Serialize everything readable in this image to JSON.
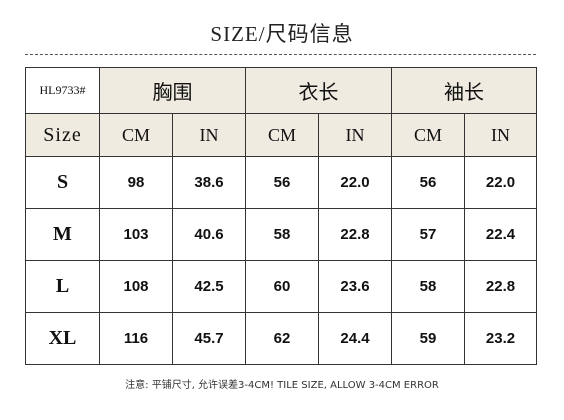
{
  "header": {
    "title": "SIZE/尺码信息"
  },
  "table": {
    "brand": "HL9733#",
    "groups": [
      "胸围",
      "衣长",
      "袖长"
    ],
    "subheaders": [
      "Size",
      "CM",
      "IN",
      "CM",
      "IN",
      "CM",
      "IN"
    ],
    "rows": [
      [
        "S",
        "98",
        "38.6",
        "56",
        "22.0",
        "56",
        "22.0"
      ],
      [
        "M",
        "103",
        "40.6",
        "58",
        "22.8",
        "57",
        "22.4"
      ],
      [
        "L",
        "108",
        "42.5",
        "60",
        "23.6",
        "58",
        "22.8"
      ],
      [
        "XL",
        "116",
        "45.7",
        "62",
        "24.4",
        "59",
        "23.2"
      ]
    ]
  },
  "footer": {
    "note": "注意: 平铺尺寸, 允许误差3-4CM! TILE SIZE, ALLOW 3-4CM ERROR"
  }
}
